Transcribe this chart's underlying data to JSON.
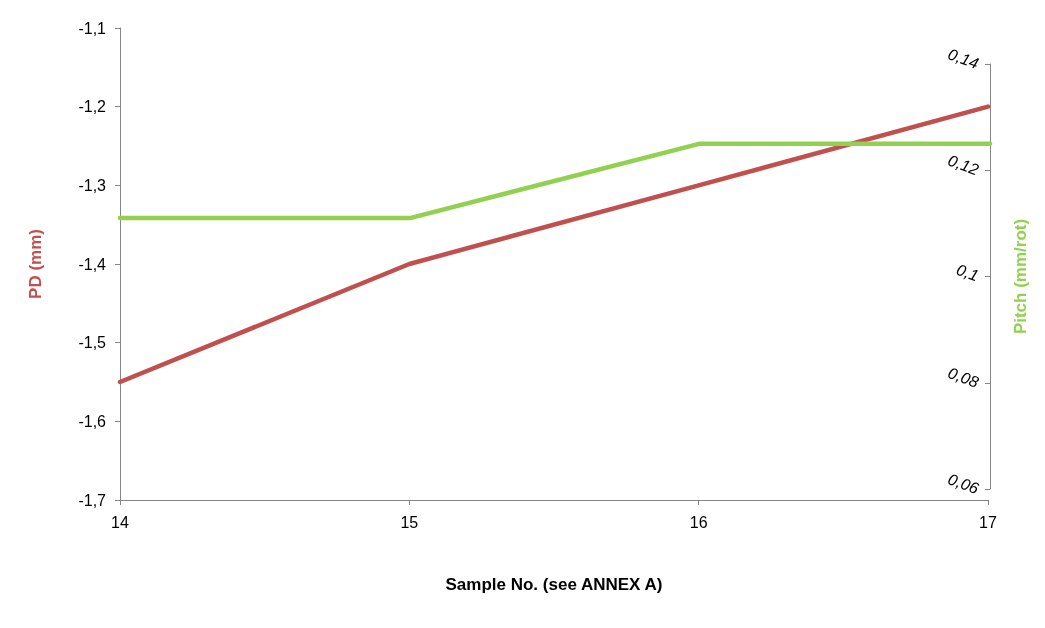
{
  "chart_data": {
    "type": "line",
    "xlabel": "Sample No. (see ANNEX A)",
    "ylabel": "PD (mm)",
    "y2label": "Pitch (mm/rot)",
    "x": [
      14,
      15,
      16,
      17
    ],
    "xlim": [
      14,
      17
    ],
    "xticks": [
      14,
      15,
      16,
      17
    ],
    "ylim": [
      -1.7,
      -1.1
    ],
    "yticks": [
      {
        "value": -1.7,
        "label": "-1,7"
      },
      {
        "value": -1.6,
        "label": "-1,6"
      },
      {
        "value": -1.5,
        "label": "-1,5"
      },
      {
        "value": -1.4,
        "label": "-1,4"
      },
      {
        "value": -1.3,
        "label": "-1,3"
      },
      {
        "value": -1.2,
        "label": "-1,2"
      },
      {
        "value": -1.1,
        "label": "-1,1"
      }
    ],
    "y2lim": [
      0.06,
      0.14
    ],
    "y2ticks": [
      {
        "value": 0.06,
        "label": "0,06"
      },
      {
        "value": 0.08,
        "label": "0,08"
      },
      {
        "value": 0.1,
        "label": "0,1"
      },
      {
        "value": 0.12,
        "label": "0,12"
      },
      {
        "value": 0.14,
        "label": "0,14"
      }
    ],
    "marker": "none",
    "series": [
      {
        "color": "#c0504d",
        "values": [
          -1.55,
          -1.4,
          -1.3,
          -1.2
        ]
      },
      {
        "color": "#92d050",
        "axis": "y2",
        "values": [
          0.111,
          0.111,
          0.125,
          0.125
        ]
      }
    ]
  }
}
